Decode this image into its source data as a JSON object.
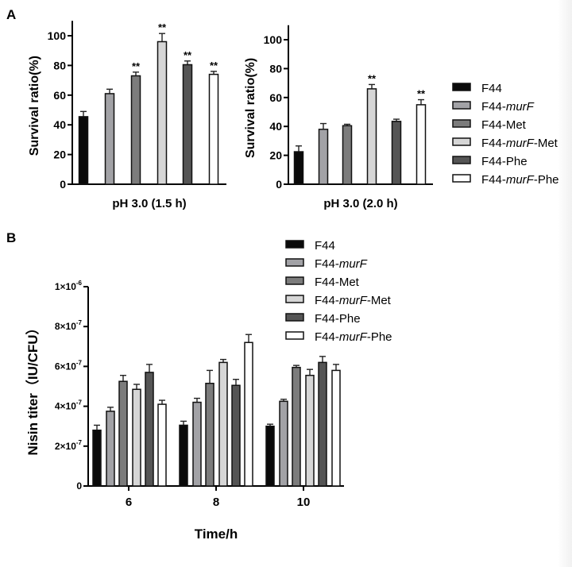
{
  "colors": {
    "F44": "#0a0a0a",
    "F44-murF": "#a2a2a6",
    "F44-Met": "#7c7c7c",
    "F44-murF-Met": "#d6d6d6",
    "F44-Phe": "#555555",
    "F44-murF-Phe": "#ffffff"
  },
  "legend_entries": [
    {
      "key": "F44",
      "parts": [
        {
          "t": "F44"
        }
      ]
    },
    {
      "key": "F44-murF",
      "parts": [
        {
          "t": "F44-"
        },
        {
          "t": "murF",
          "i": true
        }
      ]
    },
    {
      "key": "F44-Met",
      "parts": [
        {
          "t": "F44-Met"
        }
      ]
    },
    {
      "key": "F44-murF-Met",
      "parts": [
        {
          "t": "F44-"
        },
        {
          "t": "murF",
          "i": true
        },
        {
          "t": "-Met"
        }
      ]
    },
    {
      "key": "F44-Phe",
      "parts": [
        {
          "t": "F44-Phe"
        }
      ]
    },
    {
      "key": "F44-murF-Phe",
      "parts": [
        {
          "t": "F44-"
        },
        {
          "t": "murF",
          "i": true
        },
        {
          "t": "-Phe"
        }
      ]
    }
  ],
  "chart_data": [
    {
      "panel": "A",
      "type": "bar",
      "title": "",
      "xlabel": "pH 3.0 (1.5 h)",
      "ylabel": "Survival ratio(%)",
      "ylim": [
        0,
        110
      ],
      "yticks": [
        0,
        20,
        40,
        60,
        80,
        100
      ],
      "series": [
        {
          "name": "F44",
          "value": 45.5,
          "error": 3.5,
          "sig": ""
        },
        {
          "name": "F44-murF",
          "value": 61,
          "error": 3,
          "sig": ""
        },
        {
          "name": "F44-Met",
          "value": 73,
          "error": 2.5,
          "sig": "**"
        },
        {
          "name": "F44-murF-Met",
          "value": 96,
          "error": 5.5,
          "sig": "**"
        },
        {
          "name": "F44-Phe",
          "value": 80.5,
          "error": 2.5,
          "sig": "**"
        },
        {
          "name": "F44-murF-Phe",
          "value": 74,
          "error": 2,
          "sig": "**"
        }
      ]
    },
    {
      "panel": "",
      "type": "bar",
      "title": "",
      "xlabel": "pH 3.0 (2.0 h)",
      "ylabel": "Survival ratio(%)",
      "ylim": [
        0,
        110
      ],
      "yticks": [
        0,
        20,
        40,
        60,
        80,
        100
      ],
      "series": [
        {
          "name": "F44",
          "value": 22.5,
          "error": 4,
          "sig": ""
        },
        {
          "name": "F44-murF",
          "value": 38,
          "error": 4,
          "sig": ""
        },
        {
          "name": "F44-Met",
          "value": 40.5,
          "error": 1,
          "sig": ""
        },
        {
          "name": "F44-murF-Met",
          "value": 66,
          "error": 3,
          "sig": "**"
        },
        {
          "name": "F44-Phe",
          "value": 43.5,
          "error": 1.5,
          "sig": ""
        },
        {
          "name": "F44-murF-Phe",
          "value": 55,
          "error": 3.5,
          "sig": "**"
        }
      ],
      "legend": "right"
    },
    {
      "panel": "B",
      "type": "bar",
      "title": "",
      "xlabel": "Time/h",
      "ylabel": "Nisin titer（IU/CFU）",
      "ylim": [
        0,
        1e-06
      ],
      "yticks": [
        {
          "v": 0,
          "base": "0",
          "exp": ""
        },
        {
          "v": 2e-07,
          "base": "2×10",
          "exp": "-7"
        },
        {
          "v": 4e-07,
          "base": "4×10",
          "exp": "-7"
        },
        {
          "v": 6e-07,
          "base": "6×10",
          "exp": "-7"
        },
        {
          "v": 8e-07,
          "base": "8×10",
          "exp": "-7"
        },
        {
          "v": 1e-06,
          "base": "1×10",
          "exp": "-6"
        }
      ],
      "categories": [
        "6",
        "8",
        "10"
      ],
      "series": [
        {
          "name": "F44",
          "values": [
            2.8e-07,
            3.05e-07,
            3e-07
          ],
          "errors": [
            2.5e-08,
            2e-08,
            1e-08
          ]
        },
        {
          "name": "F44-murF",
          "values": [
            3.75e-07,
            4.2e-07,
            4.25e-07
          ],
          "errors": [
            2e-08,
            2e-08,
            1e-08
          ]
        },
        {
          "name": "F44-Met",
          "values": [
            5.25e-07,
            5.15e-07,
            5.95e-07
          ],
          "errors": [
            3e-08,
            6.5e-08,
            1e-08
          ]
        },
        {
          "name": "F44-murF-Met",
          "values": [
            4.85e-07,
            6.2e-07,
            5.55e-07
          ],
          "errors": [
            2.5e-08,
            1.5e-08,
            3e-08
          ]
        },
        {
          "name": "F44-Phe",
          "values": [
            5.7e-07,
            5.05e-07,
            6.2e-07
          ],
          "errors": [
            4e-08,
            3e-08,
            3e-08
          ]
        },
        {
          "name": "F44-murF-Phe",
          "values": [
            4.1e-07,
            7.2e-07,
            5.8e-07
          ],
          "errors": [
            2e-08,
            4e-08,
            3e-08
          ]
        }
      ],
      "legend": "top-right"
    }
  ]
}
